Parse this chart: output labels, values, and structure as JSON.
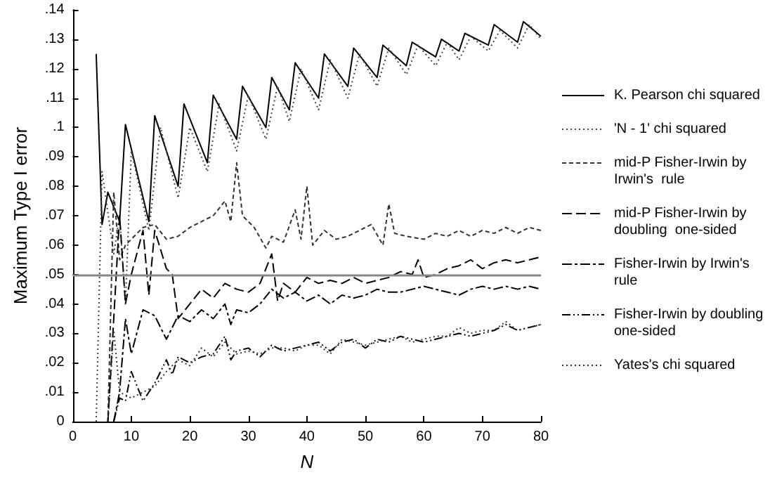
{
  "chart_data": {
    "type": "line",
    "xlabel": "N",
    "ylabel": "Maximum Type I error",
    "xlim": [
      0,
      80
    ],
    "xticks": [
      0,
      10,
      20,
      30,
      40,
      50,
      60,
      70,
      80
    ],
    "ylim": [
      0,
      0.14
    ],
    "yticks": [
      {
        "value": 0,
        "label": "0"
      },
      {
        "value": 0.01,
        "label": ".01"
      },
      {
        "value": 0.02,
        "label": ".02"
      },
      {
        "value": 0.03,
        "label": ".03"
      },
      {
        "value": 0.04,
        "label": ".04"
      },
      {
        "value": 0.05,
        "label": ".05"
      },
      {
        "value": 0.06,
        "label": ".06"
      },
      {
        "value": 0.07,
        "label": ".07"
      },
      {
        "value": 0.08,
        "label": ".08"
      },
      {
        "value": 0.09,
        "label": ".09"
      },
      {
        "value": 0.1,
        "label": ".1"
      },
      {
        "value": 0.11,
        "label": ".11"
      },
      {
        "value": 0.12,
        "label": ".12"
      },
      {
        "value": 0.13,
        "label": ".13"
      },
      {
        "value": 0.14,
        "label": ".14"
      }
    ],
    "grid": false,
    "legend": "right",
    "marker": "none",
    "ref_lines": [
      {
        "axis": "y",
        "value": 0.05,
        "color": "#888888"
      }
    ],
    "series": [
      {
        "name": "K. Pearson chi squared",
        "color": "#000000",
        "line_style": "solid",
        "x": [
          4,
          5,
          6,
          8,
          9,
          13,
          14,
          18,
          19,
          23,
          24,
          28,
          29,
          33,
          34,
          37,
          38,
          42,
          43,
          47,
          48,
          52,
          53,
          57,
          58,
          62,
          63,
          66,
          67,
          71,
          72,
          76,
          77,
          80
        ],
        "values": [
          0.125,
          0.067,
          0.078,
          0.068,
          0.101,
          0.068,
          0.104,
          0.08,
          0.108,
          0.088,
          0.111,
          0.096,
          0.114,
          0.1,
          0.117,
          0.106,
          0.122,
          0.11,
          0.125,
          0.114,
          0.127,
          0.117,
          0.128,
          0.121,
          0.129,
          0.124,
          0.13,
          0.126,
          0.132,
          0.128,
          0.135,
          0.129,
          0.136,
          0.131
        ]
      },
      {
        "name": "'N - 1' chi squared",
        "color": "#444444",
        "line_style": "dotted",
        "x": [
          4,
          5,
          7,
          8,
          9,
          10,
          13,
          15,
          18,
          20,
          23,
          25,
          28,
          30,
          33,
          35,
          37,
          39,
          42,
          44,
          47,
          49,
          52,
          54,
          57,
          59,
          62,
          64,
          66,
          68,
          71,
          73,
          76,
          78,
          80
        ],
        "values": [
          0,
          0.085,
          0.057,
          0.07,
          0.04,
          0.092,
          0.065,
          0.1,
          0.076,
          0.1,
          0.085,
          0.108,
          0.092,
          0.111,
          0.096,
          0.114,
          0.102,
          0.12,
          0.106,
          0.123,
          0.11,
          0.125,
          0.114,
          0.127,
          0.118,
          0.128,
          0.121,
          0.129,
          0.123,
          0.131,
          0.126,
          0.133,
          0.127,
          0.135,
          0.13
        ]
      },
      {
        "name": "mid-P Fisher-Irwin by Irwin's  rule",
        "color": "#333333",
        "line_style": "dashed",
        "x": [
          6,
          7,
          8,
          9,
          10,
          12,
          14,
          16,
          18,
          20,
          22,
          24,
          26,
          27,
          28,
          29,
          31,
          33,
          34,
          36,
          38,
          39,
          40,
          41,
          43,
          45,
          47,
          49,
          51,
          53,
          54,
          55,
          57,
          60,
          62,
          64,
          66,
          68,
          70,
          72,
          74,
          76,
          78,
          80
        ],
        "values": [
          0,
          0.078,
          0.055,
          0.06,
          0.062,
          0.066,
          0.067,
          0.062,
          0.063,
          0.066,
          0.068,
          0.07,
          0.075,
          0.068,
          0.088,
          0.07,
          0.066,
          0.059,
          0.063,
          0.061,
          0.072,
          0.062,
          0.08,
          0.06,
          0.065,
          0.062,
          0.063,
          0.065,
          0.067,
          0.06,
          0.074,
          0.064,
          0.063,
          0.062,
          0.064,
          0.063,
          0.065,
          0.063,
          0.065,
          0.064,
          0.066,
          0.064,
          0.066,
          0.065
        ]
      },
      {
        "name": "mid-P Fisher-Irwin by doubling  one-sided",
        "color": "#000000",
        "line_style": "dashed",
        "x": [
          6,
          8,
          9,
          10,
          12,
          13,
          14,
          16,
          17,
          18,
          20,
          22,
          24,
          26,
          28,
          30,
          32,
          34,
          35,
          36,
          38,
          40,
          42,
          44,
          46,
          48,
          50,
          52,
          54,
          56,
          58,
          59,
          60,
          62,
          64,
          66,
          68,
          70,
          72,
          74,
          76,
          78,
          80
        ],
        "values": [
          0,
          0.07,
          0.04,
          0.05,
          0.065,
          0.043,
          0.065,
          0.052,
          0.05,
          0.035,
          0.04,
          0.045,
          0.042,
          0.047,
          0.045,
          0.044,
          0.047,
          0.057,
          0.041,
          0.047,
          0.044,
          0.049,
          0.047,
          0.048,
          0.047,
          0.049,
          0.047,
          0.048,
          0.049,
          0.051,
          0.05,
          0.055,
          0.049,
          0.05,
          0.052,
          0.053,
          0.055,
          0.052,
          0.054,
          0.055,
          0.054,
          0.055,
          0.056
        ]
      },
      {
        "name": "Fisher-Irwin by Irwin's rule",
        "color": "#000000",
        "line_style": "dashed",
        "x": [
          7,
          8,
          9,
          10,
          12,
          14,
          16,
          18,
          20,
          22,
          24,
          26,
          27,
          28,
          30,
          32,
          34,
          36,
          38,
          40,
          42,
          44,
          46,
          48,
          50,
          52,
          54,
          56,
          58,
          60,
          62,
          64,
          66,
          68,
          70,
          72,
          74,
          76,
          78,
          80
        ],
        "values": [
          0,
          0.01,
          0.035,
          0.023,
          0.038,
          0.036,
          0.028,
          0.036,
          0.034,
          0.038,
          0.035,
          0.04,
          0.033,
          0.038,
          0.037,
          0.04,
          0.045,
          0.042,
          0.044,
          0.041,
          0.043,
          0.04,
          0.043,
          0.042,
          0.043,
          0.045,
          0.044,
          0.044,
          0.045,
          0.046,
          0.045,
          0.044,
          0.043,
          0.045,
          0.046,
          0.045,
          0.046,
          0.045,
          0.046,
          0.045
        ]
      },
      {
        "name": "Fisher-Irwin by doubling one-sided",
        "color": "#000000",
        "line_style": "dashed",
        "x": [
          7,
          8,
          9,
          10,
          12,
          14,
          16,
          17,
          18,
          20,
          22,
          24,
          26,
          27,
          28,
          30,
          32,
          34,
          36,
          38,
          40,
          42,
          44,
          46,
          48,
          50,
          52,
          54,
          56,
          58,
          60,
          62,
          64,
          66,
          68,
          70,
          72,
          74,
          76,
          78,
          80
        ],
        "values": [
          0,
          0.008,
          0.007,
          0.017,
          0.007,
          0.013,
          0.021,
          0.016,
          0.022,
          0.02,
          0.022,
          0.023,
          0.029,
          0.021,
          0.024,
          0.025,
          0.022,
          0.026,
          0.024,
          0.025,
          0.026,
          0.027,
          0.024,
          0.027,
          0.028,
          0.025,
          0.028,
          0.027,
          0.029,
          0.028,
          0.027,
          0.028,
          0.029,
          0.03,
          0.029,
          0.03,
          0.031,
          0.033,
          0.031,
          0.032,
          0.033
        ]
      },
      {
        "name": "Yates's chi squared",
        "color": "#333333",
        "line_style": "dotted",
        "x": [
          6,
          7,
          8,
          10,
          12,
          14,
          16,
          18,
          20,
          22,
          24,
          26,
          28,
          30,
          32,
          34,
          36,
          38,
          40,
          42,
          44,
          46,
          48,
          50,
          52,
          54,
          56,
          58,
          60,
          62,
          64,
          66,
          68,
          70,
          72,
          74,
          76,
          78,
          80
        ],
        "values": [
          0,
          0.031,
          0.01,
          0.008,
          0.01,
          0.012,
          0.017,
          0.021,
          0.019,
          0.025,
          0.022,
          0.027,
          0.023,
          0.024,
          0.023,
          0.025,
          0.025,
          0.024,
          0.026,
          0.026,
          0.023,
          0.028,
          0.027,
          0.026,
          0.027,
          0.028,
          0.029,
          0.027,
          0.028,
          0.029,
          0.029,
          0.032,
          0.03,
          0.031,
          0.031,
          0.034,
          0.031,
          0.032,
          0.033
        ]
      }
    ]
  }
}
